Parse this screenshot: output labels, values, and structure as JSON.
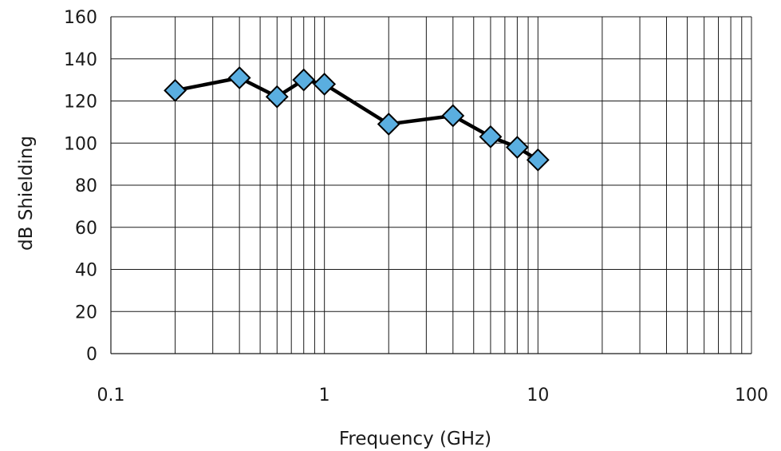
{
  "chart_data": {
    "type": "line",
    "title": "",
    "xlabel": "Frequency (GHz)",
    "ylabel": "dB Shielding",
    "x_scale": "log",
    "xlim": [
      0.1,
      100
    ],
    "ylim": [
      0,
      160
    ],
    "x_ticks": [
      0.1,
      1,
      10,
      100
    ],
    "x_tick_labels": [
      "0.1",
      "1",
      "10",
      "100"
    ],
    "y_ticks": [
      0,
      20,
      40,
      60,
      80,
      100,
      120,
      140,
      160
    ],
    "y_tick_labels": [
      "0",
      "20",
      "40",
      "60",
      "80",
      "100",
      "120",
      "140",
      "160"
    ],
    "grid": true,
    "legend": "none",
    "series": [
      {
        "x": [
          0.2,
          0.4,
          0.6,
          0.8,
          1,
          2,
          4,
          6,
          8,
          10
        ],
        "y": [
          125,
          131,
          122,
          130,
          128,
          109,
          113,
          103,
          98,
          92
        ],
        "line_color": "#000000",
        "marker": "diamond",
        "marker_color": "#5aaee0"
      }
    ]
  }
}
